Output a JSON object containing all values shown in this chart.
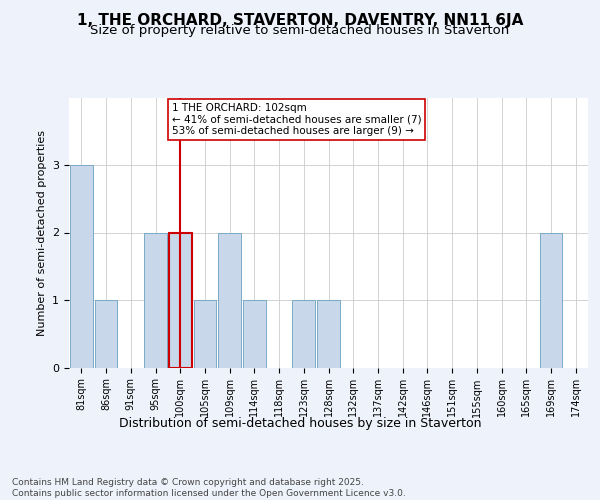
{
  "title": "1, THE ORCHARD, STAVERTON, DAVENTRY, NN11 6JA",
  "subtitle": "Size of property relative to semi-detached houses in Staverton",
  "xlabel": "Distribution of semi-detached houses by size in Staverton",
  "ylabel": "Number of semi-detached properties",
  "categories": [
    "81sqm",
    "86sqm",
    "91sqm",
    "95sqm",
    "100sqm",
    "105sqm",
    "109sqm",
    "114sqm",
    "118sqm",
    "123sqm",
    "128sqm",
    "132sqm",
    "137sqm",
    "142sqm",
    "146sqm",
    "151sqm",
    "155sqm",
    "160sqm",
    "165sqm",
    "169sqm",
    "174sqm"
  ],
  "values": [
    3,
    1,
    0,
    2,
    2,
    1,
    2,
    1,
    0,
    1,
    1,
    0,
    0,
    0,
    0,
    0,
    0,
    0,
    0,
    2,
    0
  ],
  "bar_color": "#c8d8ea",
  "bar_edgecolor": "#7aaac8",
  "highlight_index": 4,
  "vline_color": "#cc0000",
  "annotation_text": "1 THE ORCHARD: 102sqm\n← 41% of semi-detached houses are smaller (7)\n53% of semi-detached houses are larger (9) →",
  "annotation_box_facecolor": "white",
  "annotation_box_edgecolor": "#cc0000",
  "ylim": [
    0,
    4
  ],
  "yticks": [
    0,
    1,
    2,
    3
  ],
  "footer_text": "Contains HM Land Registry data © Crown copyright and database right 2025.\nContains public sector information licensed under the Open Government Licence v3.0.",
  "title_fontsize": 11,
  "subtitle_fontsize": 9.5,
  "xlabel_fontsize": 9,
  "ylabel_fontsize": 8,
  "tick_fontsize": 7,
  "annotation_fontsize": 7.5,
  "footer_fontsize": 6.5,
  "background_color": "#eef2fa",
  "plot_bg_color": "#ffffff",
  "grid_color": "#cccccc"
}
